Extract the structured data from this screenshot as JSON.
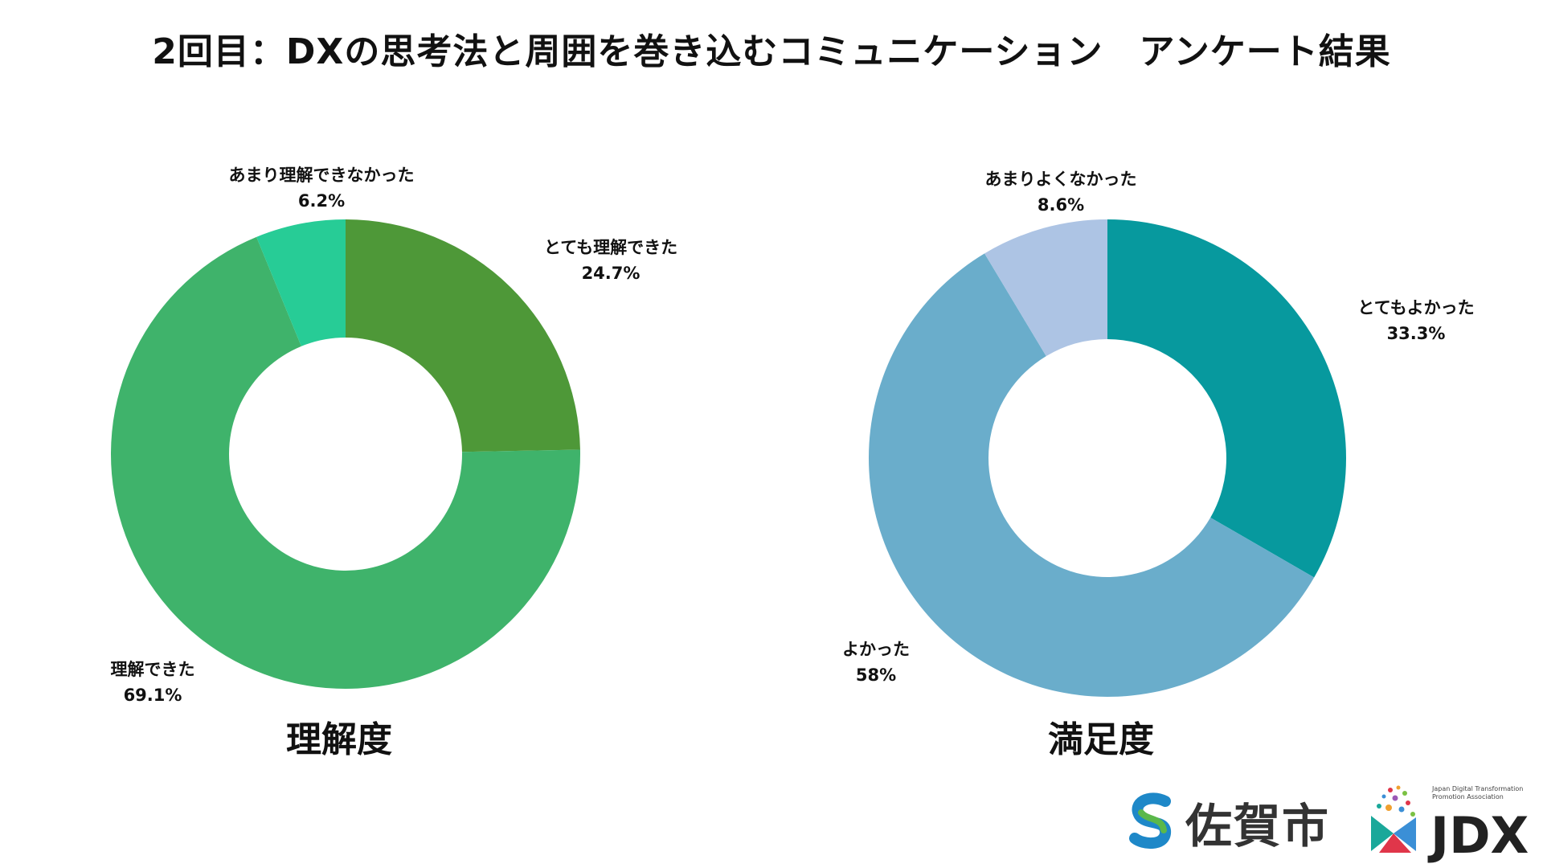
{
  "title": "2回目：DXの思考法と周囲を巻き込むコミュニケーション　アンケート結果",
  "chart_data": [
    {
      "type": "pie",
      "title": "理解度",
      "donut": true,
      "start": "top, clockwise",
      "categories": [
        "とても理解できた",
        "理解できた",
        "あまり理解できなかった"
      ],
      "values": [
        24.7,
        69.1,
        6.2
      ],
      "value_labels": [
        "24.7%",
        "69.1%",
        "6.2%"
      ],
      "colors": [
        "#4e9838",
        "#3fb36b",
        "#27cc96"
      ]
    },
    {
      "type": "pie",
      "title": "満足度",
      "donut": true,
      "start": "top, clockwise",
      "categories": [
        "とてもよかった",
        "よかった",
        "あまりよくなかった"
      ],
      "values": [
        33.3,
        58,
        8.6
      ],
      "value_labels": [
        "33.3%",
        "58%",
        "8.6%"
      ],
      "colors": [
        "#07999e",
        "#6aadcb",
        "#adc4e4"
      ]
    }
  ],
  "logos": {
    "city_name": "佐賀市",
    "jdx_name": "JDX",
    "jdx_tagline": "Japan Digital Transformation Promotion Association",
    "colors": {
      "saga_blue": "#1e88c8",
      "saga_green": "#5bb84a",
      "jdx_red": "#e0364a",
      "jdx_teal": "#1aa89a"
    }
  }
}
